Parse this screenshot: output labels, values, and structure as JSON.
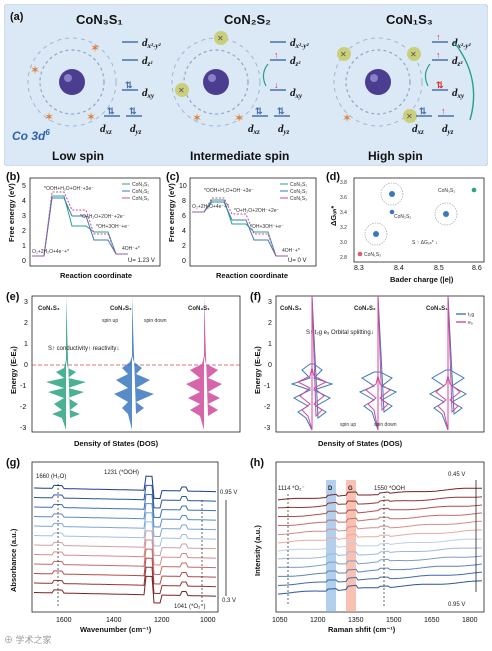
{
  "panel_a": {
    "label": "(a)",
    "titles": [
      "CoN₃S₁",
      "CoN₂S₂",
      "CoN₁S₃"
    ],
    "orbitals": {
      "dx2y2": "d",
      "dx2y2_sub": "x²-y²",
      "dz2": "d",
      "dz2_sub": "z²",
      "dxy": "d",
      "dxy_sub": "xy",
      "dxz": "d",
      "dxz_sub": "xz",
      "dyz": "d",
      "dyz_sub": "yz"
    },
    "config": "Co 3d",
    "config_sup": "6",
    "spins": [
      "Low spin",
      "Intermediate spin",
      "High spin"
    ]
  },
  "panel_b": {
    "label": "(b)",
    "ylabel": "Free energy (eV)",
    "xlabel": "Reaction coordinate",
    "legend": [
      "CoN₃S₁",
      "CoN₂S₂",
      "CoN₁S₃"
    ],
    "annotations": [
      "*OOH+H₂O+OH⁻+3e⁻",
      "*O+H₂O+2OH⁻+2e⁻",
      "*OH+3OH⁻+e⁻",
      "O₂+2H₂O+4e⁻+*",
      "4OH⁻+*"
    ],
    "condition": "U= 1.23 V",
    "yticks": [
      "5",
      "4",
      "3",
      "2",
      "1",
      "0"
    ]
  },
  "panel_c": {
    "label": "(c)",
    "ylabel": "Free energy (eV)",
    "xlabel": "Reaction coordinate",
    "legend": [
      "CoN₃S₁",
      "CoN₂S₂",
      "CoN₁S₃"
    ],
    "annotations": [
      "*OOH+H₂O+OH⁻+3e⁻",
      "*O+H₂O+2OH⁻+2e⁻",
      "*OH+3OH⁻+e⁻",
      "O₂+2H₂O+4e⁻+*",
      "4OH⁻+*"
    ],
    "condition": "U= 0 V",
    "yticks": [
      "10",
      "8",
      "6",
      "4",
      "2",
      "0"
    ]
  },
  "panel_d": {
    "label": "(d)",
    "ylabel": "ΔGₒₕ*",
    "xlabel": "Bader charge (|e|)",
    "xticks": [
      "8.3",
      "8.4",
      "8.5",
      "8.6"
    ],
    "yticks": [
      "3.8",
      "3.6",
      "3.4",
      "3.2",
      "3.0",
      "2.8"
    ],
    "labels": [
      "CoN₃S₁",
      "CoN₂S₂",
      "CoN₁S₃"
    ],
    "trend": "S ↑   ΔGₒₕ* ↓"
  },
  "panel_e": {
    "label": "(e)",
    "ylabel": "Energy (E-Eₓ)",
    "xlabel": "Density of States (DOS)",
    "titles": [
      "CoN₁S₃",
      "CoN₂S₂",
      "CoN₃S₁"
    ],
    "spin_up": "spin up",
    "spin_down": "spin down",
    "notes": [
      "S↑ conductivity↑ reactivity↓"
    ],
    "yticks": [
      "3",
      "2",
      "1",
      "0",
      "-1",
      "-2",
      "-3"
    ]
  },
  "panel_f": {
    "label": "(f)",
    "ylabel": "Energy (E-Eₓ)",
    "xlabel": "Density of States (DOS)",
    "titles": [
      "CoN₁S₃",
      "CoN₂S₂",
      "CoN₃S₁"
    ],
    "legend": [
      "t₂g",
      "e₉"
    ],
    "note": "S↑  t₂g e₉ Orbital splitting↓",
    "spin_up": "spin up",
    "spin_down": "spin down",
    "yticks": [
      "3",
      "2",
      "1",
      "0",
      "-1",
      "-2",
      "-3"
    ]
  },
  "panel_g": {
    "label": "(g)",
    "ylabel": "Absorbance (a.u.)",
    "xlabel": "Wavenumber (cm⁻¹)",
    "xticks": [
      "1600",
      "1400",
      "1200",
      "1000"
    ],
    "annotations": [
      "1660 (H₂O)",
      "1231 (*OOH)",
      "1041 (*O₂⁻)"
    ],
    "v_top": "0.95 V",
    "v_bottom": "0.3 V"
  },
  "panel_h": {
    "label": "(h)",
    "ylabel": "Intensity (a.u.)",
    "xlabel": "Raman shfit (cm⁻¹)",
    "xticks": [
      "1050",
      "1200",
      "1350",
      "1500",
      "1650",
      "1800"
    ],
    "annotations": [
      "1114 *O₂⁻",
      "1550 *OOH"
    ],
    "bands": [
      "D",
      "G"
    ],
    "v_top": "0.45 V",
    "v_bottom": "0.95 V"
  },
  "watermark": "⊕ 学术之家"
}
